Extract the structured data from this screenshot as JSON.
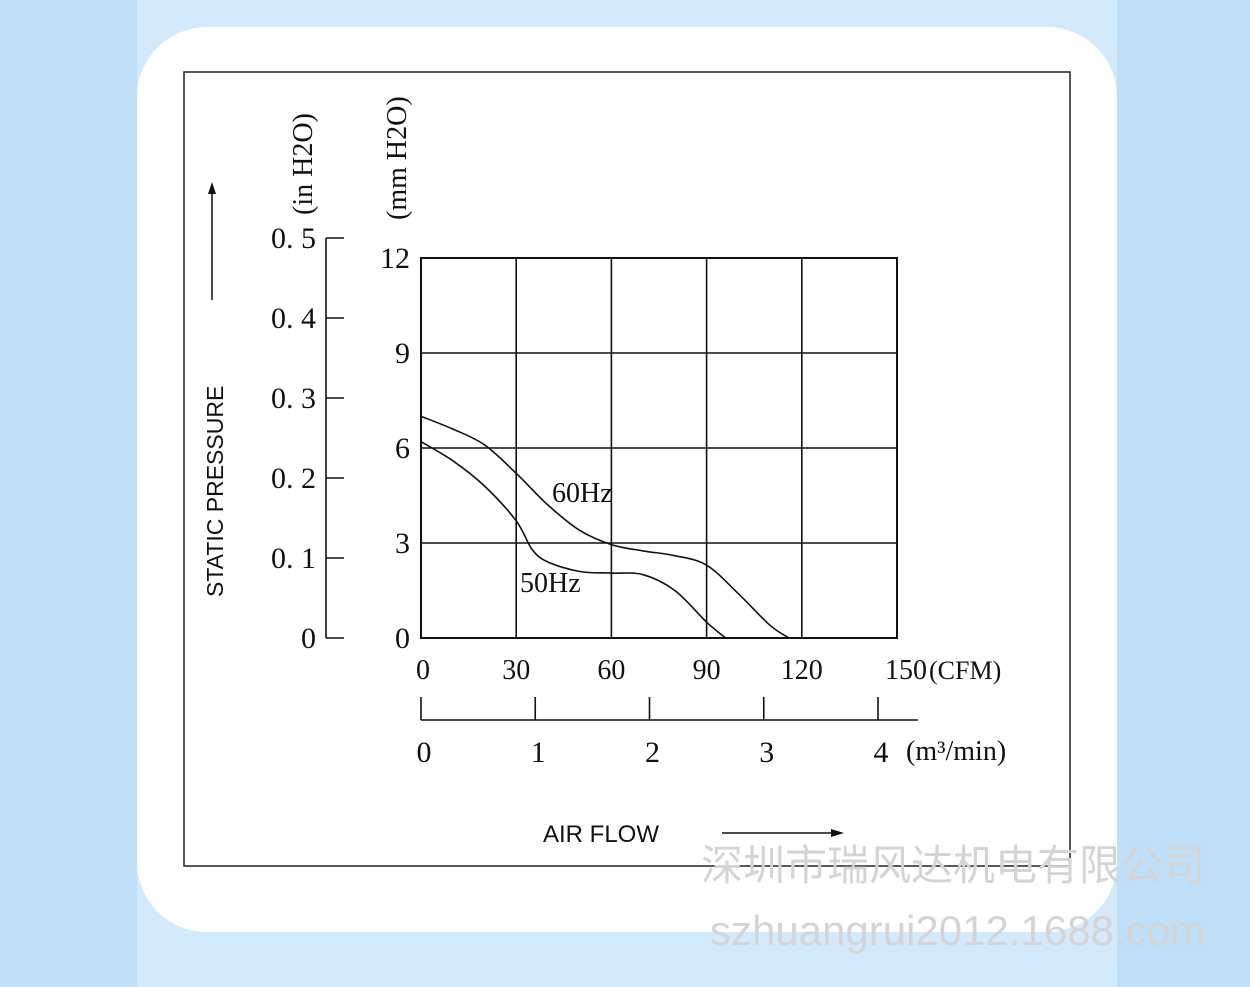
{
  "chart_data": {
    "type": "line",
    "title": "",
    "xlabel": "AIR FLOW",
    "ylabel": "STATIC PRESSURE",
    "x_unit_primary": "(CFM)",
    "x_unit_secondary": "(m³/min)",
    "y_unit_primary": "(mm H2O)",
    "y_unit_secondary": "(in H2O)",
    "x_ticks_cfm": [
      "0",
      "30",
      "60",
      "90",
      "120",
      "150"
    ],
    "x_ticks_m3": [
      "0",
      "1",
      "2",
      "3",
      "4"
    ],
    "y_ticks_mm": [
      "0",
      "3",
      "6",
      "9",
      "12"
    ],
    "y_ticks_in": [
      "0",
      "0. 1",
      "0. 2",
      "0. 3",
      "0. 4",
      "0. 5"
    ],
    "xlim": [
      0,
      150
    ],
    "ylim": [
      0,
      12
    ],
    "grid": true,
    "series": [
      {
        "name": "60Hz",
        "x": [
          0,
          10,
          20,
          30,
          40,
          50,
          60,
          70,
          80,
          90,
          100,
          110,
          116
        ],
        "y": [
          7.0,
          6.6,
          6.1,
          5.2,
          4.2,
          3.4,
          2.95,
          2.75,
          2.6,
          2.3,
          1.4,
          0.4,
          0
        ]
      },
      {
        "name": "50Hz",
        "x": [
          0,
          10,
          20,
          30,
          35,
          40,
          50,
          60,
          70,
          80,
          90,
          96
        ],
        "y": [
          6.2,
          5.6,
          4.8,
          3.7,
          2.8,
          2.4,
          2.1,
          2.05,
          2.0,
          1.5,
          0.5,
          0
        ]
      }
    ],
    "annotations": [
      "60Hz",
      "50Hz"
    ]
  },
  "watermark": {
    "line1": "深圳市瑞风达机电有限公司",
    "line2": "szhuangrui2012.1688.com"
  }
}
